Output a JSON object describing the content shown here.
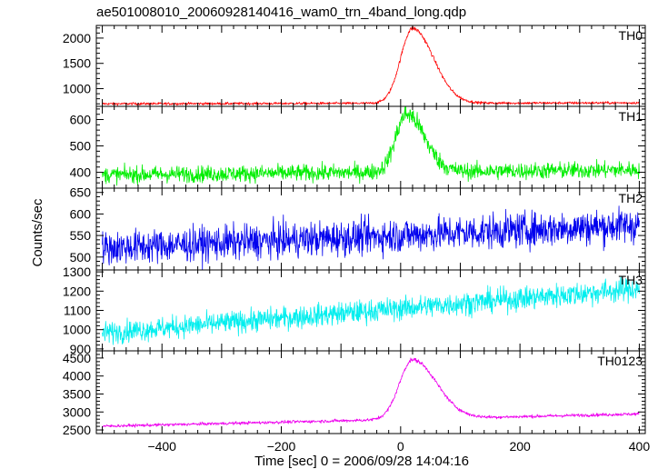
{
  "chart_data": {
    "type": "line",
    "title": "ae501008010_20060928140416_wam0_trn_4band_long.qdp",
    "xlabel": "Time [sec] 0 = 2006/09/28 14:04:16",
    "ylabel": "Counts/sec",
    "xlim": [
      -510,
      410
    ],
    "xticks": [
      -400,
      -200,
      0,
      200,
      400
    ],
    "xtick_labels": [
      "−400",
      "−200",
      "0",
      "200",
      "400"
    ],
    "grid": false,
    "panels": [
      {
        "label": "TH0",
        "color": "#ff0000",
        "ylim": [
          650,
          2250
        ],
        "yticks": [
          1000,
          1500,
          2000
        ],
        "baseline_start": 700,
        "baseline_end": 720,
        "noise": 18,
        "peak": {
          "x": 20,
          "height": 1480,
          "rise": 20,
          "decay": 35
        },
        "key_points": [
          {
            "x": -500,
            "y": 700
          },
          {
            "x": -100,
            "y": 720
          },
          {
            "x": 0,
            "y": 1350
          },
          {
            "x": 20,
            "y": 2200
          },
          {
            "x": 60,
            "y": 1350
          },
          {
            "x": 100,
            "y": 760
          },
          {
            "x": 400,
            "y": 720
          }
        ]
      },
      {
        "label": "TH1",
        "color": "#00ee00",
        "ylim": [
          340,
          650
        ],
        "yticks": [
          400,
          500,
          600
        ],
        "baseline_start": 390,
        "baseline_end": 410,
        "noise": 22,
        "peak": {
          "x": 10,
          "height": 220,
          "rise": 18,
          "decay": 30
        },
        "key_points": [
          {
            "x": -500,
            "y": 385
          },
          {
            "x": -100,
            "y": 400
          },
          {
            "x": 0,
            "y": 560
          },
          {
            "x": 10,
            "y": 620
          },
          {
            "x": 60,
            "y": 480
          },
          {
            "x": 100,
            "y": 430
          },
          {
            "x": 400,
            "y": 410
          }
        ]
      },
      {
        "label": "TH2",
        "color": "#0000ee",
        "ylim": [
          470,
          660
        ],
        "yticks": [
          500,
          550,
          600,
          650
        ],
        "baseline_start": 520,
        "baseline_end": 575,
        "noise": 28,
        "peak": null,
        "key_points": [
          {
            "x": -500,
            "y": 525
          },
          {
            "x": -200,
            "y": 540
          },
          {
            "x": 0,
            "y": 560
          },
          {
            "x": 200,
            "y": 570
          },
          {
            "x": 400,
            "y": 575
          }
        ]
      },
      {
        "label": "TH3",
        "color": "#00eeee",
        "ylim": [
          890,
          1310
        ],
        "yticks": [
          900,
          1000,
          1100,
          1200,
          1300
        ],
        "baseline_start": 980,
        "baseline_end": 1215,
        "noise": 40,
        "peak": null,
        "key_points": [
          {
            "x": -500,
            "y": 980
          },
          {
            "x": -200,
            "y": 1060
          },
          {
            "x": 0,
            "y": 1140
          },
          {
            "x": 100,
            "y": 1180
          },
          {
            "x": 400,
            "y": 1215
          }
        ]
      },
      {
        "label": "TH0123",
        "color": "#ee00ee",
        "ylim": [
          2400,
          4700
        ],
        "yticks": [
          2500,
          3000,
          3500,
          4000,
          4500
        ],
        "baseline_start": 2600,
        "baseline_end": 2950,
        "noise": 30,
        "peak": {
          "x": 20,
          "height": 1650,
          "rise": 22,
          "decay": 40
        },
        "key_points": [
          {
            "x": -500,
            "y": 2600
          },
          {
            "x": -100,
            "y": 2800
          },
          {
            "x": 0,
            "y": 3900
          },
          {
            "x": 20,
            "y": 4550
          },
          {
            "x": 60,
            "y": 3600
          },
          {
            "x": 110,
            "y": 3000
          },
          {
            "x": 400,
            "y": 2900
          }
        ]
      }
    ]
  }
}
